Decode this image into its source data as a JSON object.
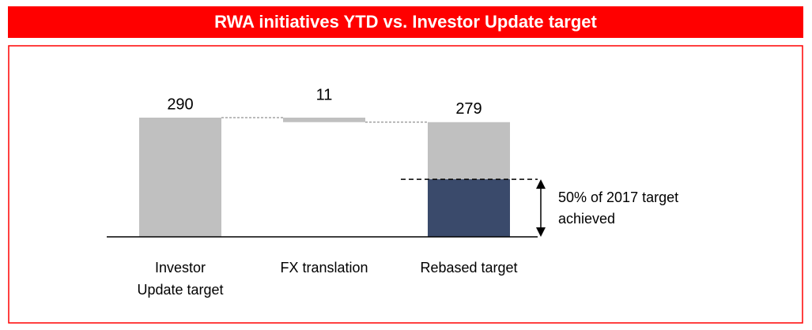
{
  "chart_data": {
    "type": "waterfall",
    "title": "RWA initiatives YTD vs. Investor Update target",
    "categories": [
      [
        "Investor",
        "Update target"
      ],
      [
        "FX translation"
      ],
      [
        "Rebased target"
      ]
    ],
    "values": [
      290,
      -11,
      279
    ],
    "value_labels": [
      "290",
      "11",
      "279"
    ],
    "measures": [
      "absolute",
      "relative",
      "total"
    ],
    "color": "#c0c0c0",
    "achieved": 140,
    "achieved_color": "#3a4a6b",
    "annotation": [
      "50% of 2017 target",
      "achieved"
    ],
    "ylim": [
      0,
      290
    ]
  }
}
